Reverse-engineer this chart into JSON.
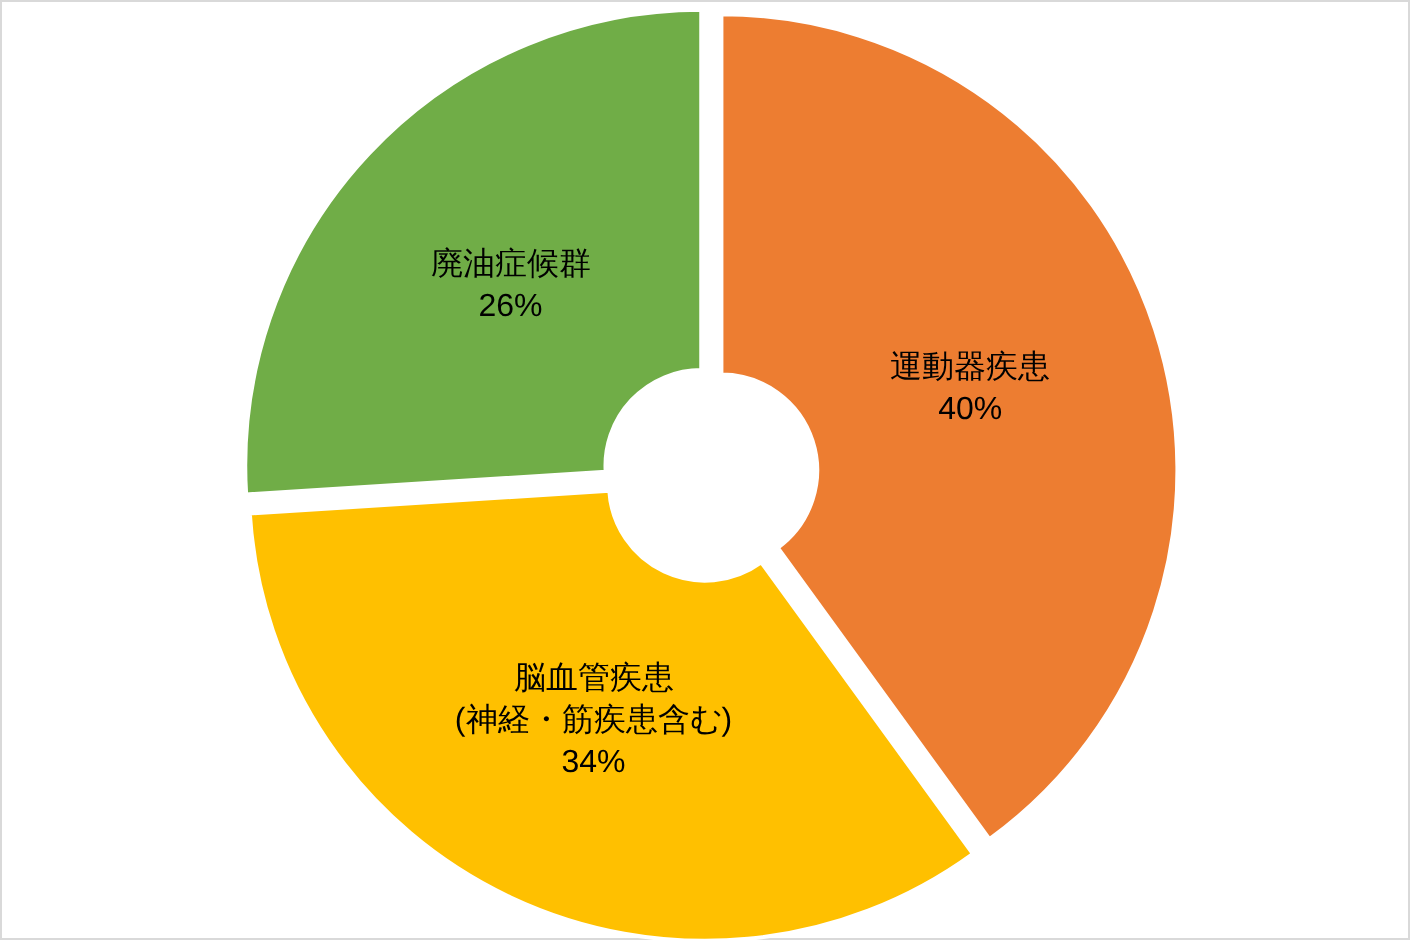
{
  "chart_data": {
    "type": "donut",
    "categories": [
      "運動器疾患",
      "脳血管疾患\n(神経・筋疾患含む)",
      "廃油症候群"
    ],
    "values": [
      40,
      34,
      26
    ],
    "colors": [
      "#ed7d31",
      "#ffc000",
      "#70ad47"
    ],
    "value_labels": [
      "40%",
      "34%",
      "26%"
    ]
  }
}
